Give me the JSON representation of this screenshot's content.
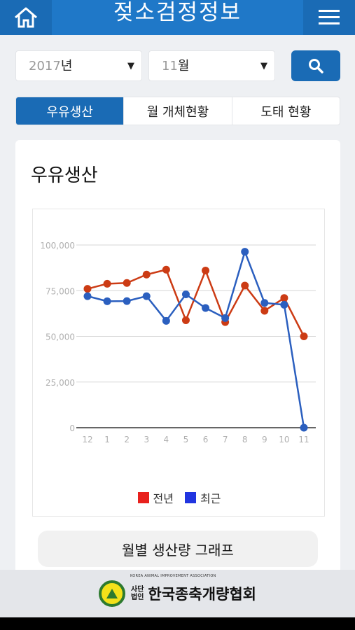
{
  "header": {
    "title": "젖소검정정보",
    "home_icon": "home-icon",
    "menu_icon": "menu-icon"
  },
  "filters": {
    "year": {
      "number": "2017",
      "unit": "년"
    },
    "month": {
      "number": "11",
      "unit": "월"
    },
    "search_icon": "search-icon"
  },
  "tabs": [
    {
      "label": "우유생산",
      "active": true
    },
    {
      "label": "월 개체현황",
      "active": false
    },
    {
      "label": "도태 현황",
      "active": false
    }
  ],
  "card": {
    "title": "우유생산",
    "graph_button": "월별 생산량 그래프"
  },
  "chart_data": {
    "type": "line",
    "categories": [
      "12",
      "1",
      "2",
      "3",
      "4",
      "5",
      "6",
      "7",
      "8",
      "9",
      "10",
      "11"
    ],
    "series": [
      {
        "name": "전년",
        "color": "#cc3b14",
        "values": [
          76000,
          78800,
          79200,
          83800,
          86500,
          58800,
          86000,
          57800,
          77800,
          64000,
          71000,
          50000
        ]
      },
      {
        "name": "최근",
        "color": "#2b5fbf",
        "values": [
          72000,
          69200,
          69300,
          72000,
          58500,
          73000,
          65500,
          60000,
          96300,
          68300,
          67300,
          0
        ]
      }
    ],
    "yticks": [
      "100,000",
      "75,000",
      "50,000",
      "25,000",
      "0"
    ],
    "ylim": [
      0,
      100000
    ],
    "legend_position": "bottom",
    "legend_swatches": [
      "#e8211d",
      "#2135e0"
    ]
  },
  "footer": {
    "small_top": "사단",
    "small_bottom": "법인",
    "org_name": "한국종축개량협회",
    "eng_name": "KOREA ANIMAL IMPROVEMENT ASSOCIATION"
  }
}
